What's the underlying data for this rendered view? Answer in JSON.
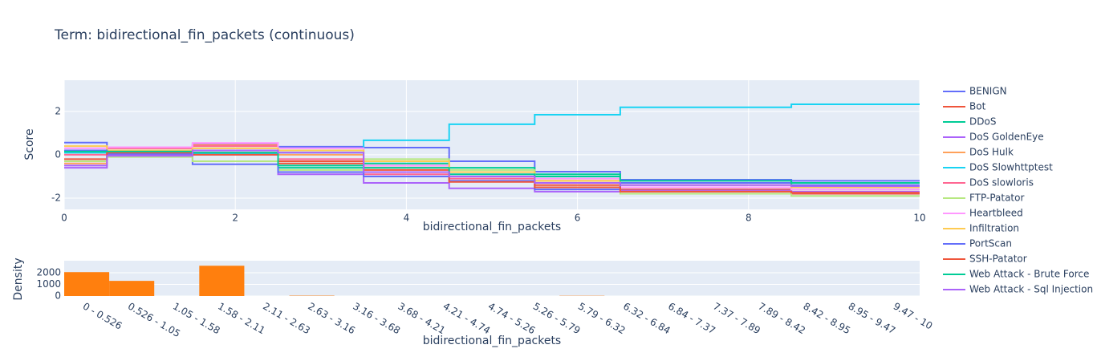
{
  "chart_data": [
    {
      "type": "line",
      "title": "Term: bidirectional_fin_packets (continuous)",
      "x_label": "bidirectional_fin_packets",
      "y_label": "Score",
      "x": [
        0,
        0.5,
        1.5,
        2.5,
        3.5,
        4.5,
        5.5,
        6.5,
        8.5,
        10
      ],
      "xlim": [
        0,
        10
      ],
      "xticks": [
        0,
        2,
        4,
        6,
        8,
        10
      ],
      "ylim": [
        -2.52,
        3.44
      ],
      "yticks": [
        -2,
        0,
        2
      ],
      "grid": true,
      "line_shape": "hv",
      "series": [
        {
          "name": "BENIGN",
          "color": "#636efa",
          "values": [
            0.56,
            0.1,
            -0.44,
            0.37,
            0.33,
            -0.3,
            -0.78,
            -1.15,
            -1.4,
            -1.4
          ]
        },
        {
          "name": "Bot",
          "color": "#EF553B",
          "values": [
            -0.3,
            0.05,
            0.1,
            -0.4,
            -0.5,
            -1.0,
            -1.4,
            -1.6,
            -1.8,
            -1.8
          ]
        },
        {
          "name": "DDoS",
          "color": "#00cc96",
          "values": [
            0.1,
            0.1,
            0.2,
            -0.6,
            -0.4,
            -0.6,
            -0.9,
            -1.3,
            -1.5,
            -1.5
          ]
        },
        {
          "name": "DoS GoldenEye",
          "color": "#ab63fa",
          "values": [
            -0.5,
            0.0,
            0.5,
            -0.9,
            -1.3,
            -1.55,
            -1.7,
            -1.65,
            -1.7,
            -1.7
          ]
        },
        {
          "name": "DoS Hulk",
          "color": "#FFA15A",
          "values": [
            -0.4,
            0.2,
            0.45,
            0.0,
            -0.6,
            -0.8,
            -1.2,
            -1.5,
            -1.6,
            -1.6
          ]
        },
        {
          "name": "DoS Slowhttptest",
          "color": "#19d3f3",
          "values": [
            0.1,
            0.1,
            0.05,
            0.1,
            0.67,
            1.41,
            1.85,
            2.19,
            2.33,
            2.33
          ]
        },
        {
          "name": "DoS slowloris",
          "color": "#FF6692",
          "values": [
            0.0,
            0.3,
            0.4,
            -0.2,
            -0.9,
            -1.1,
            -1.3,
            -1.7,
            -1.75,
            -1.75
          ]
        },
        {
          "name": "FTP-Patator",
          "color": "#B6E880",
          "values": [
            -0.3,
            -0.1,
            -0.3,
            -0.7,
            -0.2,
            -0.7,
            -1.0,
            -1.8,
            -1.9,
            -1.9
          ]
        },
        {
          "name": "Heartbleed",
          "color": "#FF97FF",
          "values": [
            0.3,
            0.35,
            0.55,
            0.3,
            -0.5,
            -0.9,
            -1.1,
            -1.5,
            -1.6,
            -1.6
          ]
        },
        {
          "name": "Infiltration",
          "color": "#FECB52",
          "values": [
            0.4,
            0.2,
            0.3,
            0.2,
            -0.3,
            -0.8,
            -1.2,
            -1.4,
            -1.5,
            -1.5
          ]
        },
        {
          "name": "PortScan",
          "color": "#636efa",
          "values": [
            0.2,
            0.05,
            0.0,
            -0.8,
            -1.0,
            -1.2,
            -1.6,
            -1.3,
            -1.2,
            -1.2
          ]
        },
        {
          "name": "SSH-Patator",
          "color": "#EF553B",
          "values": [
            -0.2,
            0.1,
            0.0,
            -0.3,
            -0.7,
            -1.25,
            -1.5,
            -1.7,
            -1.75,
            -1.75
          ]
        },
        {
          "name": "Web Attack - Brute Force",
          "color": "#00cc96",
          "values": [
            0.15,
            0.15,
            0.1,
            -0.5,
            -0.6,
            -0.9,
            -1.0,
            -1.2,
            -1.3,
            -1.3
          ]
        },
        {
          "name": "Web Attack - Sql Injection",
          "color": "#ab63fa",
          "values": [
            -0.6,
            -0.05,
            0.2,
            0.1,
            -0.8,
            -1.0,
            -1.3,
            -1.4,
            -1.45,
            -1.45
          ]
        }
      ]
    },
    {
      "type": "bar",
      "x_label": "bidirectional_fin_packets",
      "y_label": "Density",
      "color": "#ff7f0e",
      "categories": [
        "0 - 0.526",
        "0.526 - 1.05",
        "1.05 - 1.58",
        "1.58 - 2.11",
        "2.11 - 2.63",
        "2.63 - 3.16",
        "3.16 - 3.68",
        "3.68 - 4.21",
        "4.21 - 4.74",
        "4.74 - 5.26",
        "5.26 - 5.79",
        "5.79 - 6.32",
        "6.32 - 6.84",
        "6.84 - 7.37",
        "7.37 - 7.89",
        "7.89 - 8.42",
        "8.42 - 8.95",
        "8.95 - 9.47",
        "9.47 - 10"
      ],
      "values": [
        2050,
        1300,
        0,
        2600,
        0,
        30,
        0,
        0,
        0,
        0,
        0,
        20,
        0,
        0,
        0,
        0,
        0,
        0,
        0
      ],
      "ylim": [
        0,
        3030
      ],
      "yticks": [
        0,
        1000,
        2000
      ],
      "grid": true
    }
  ]
}
